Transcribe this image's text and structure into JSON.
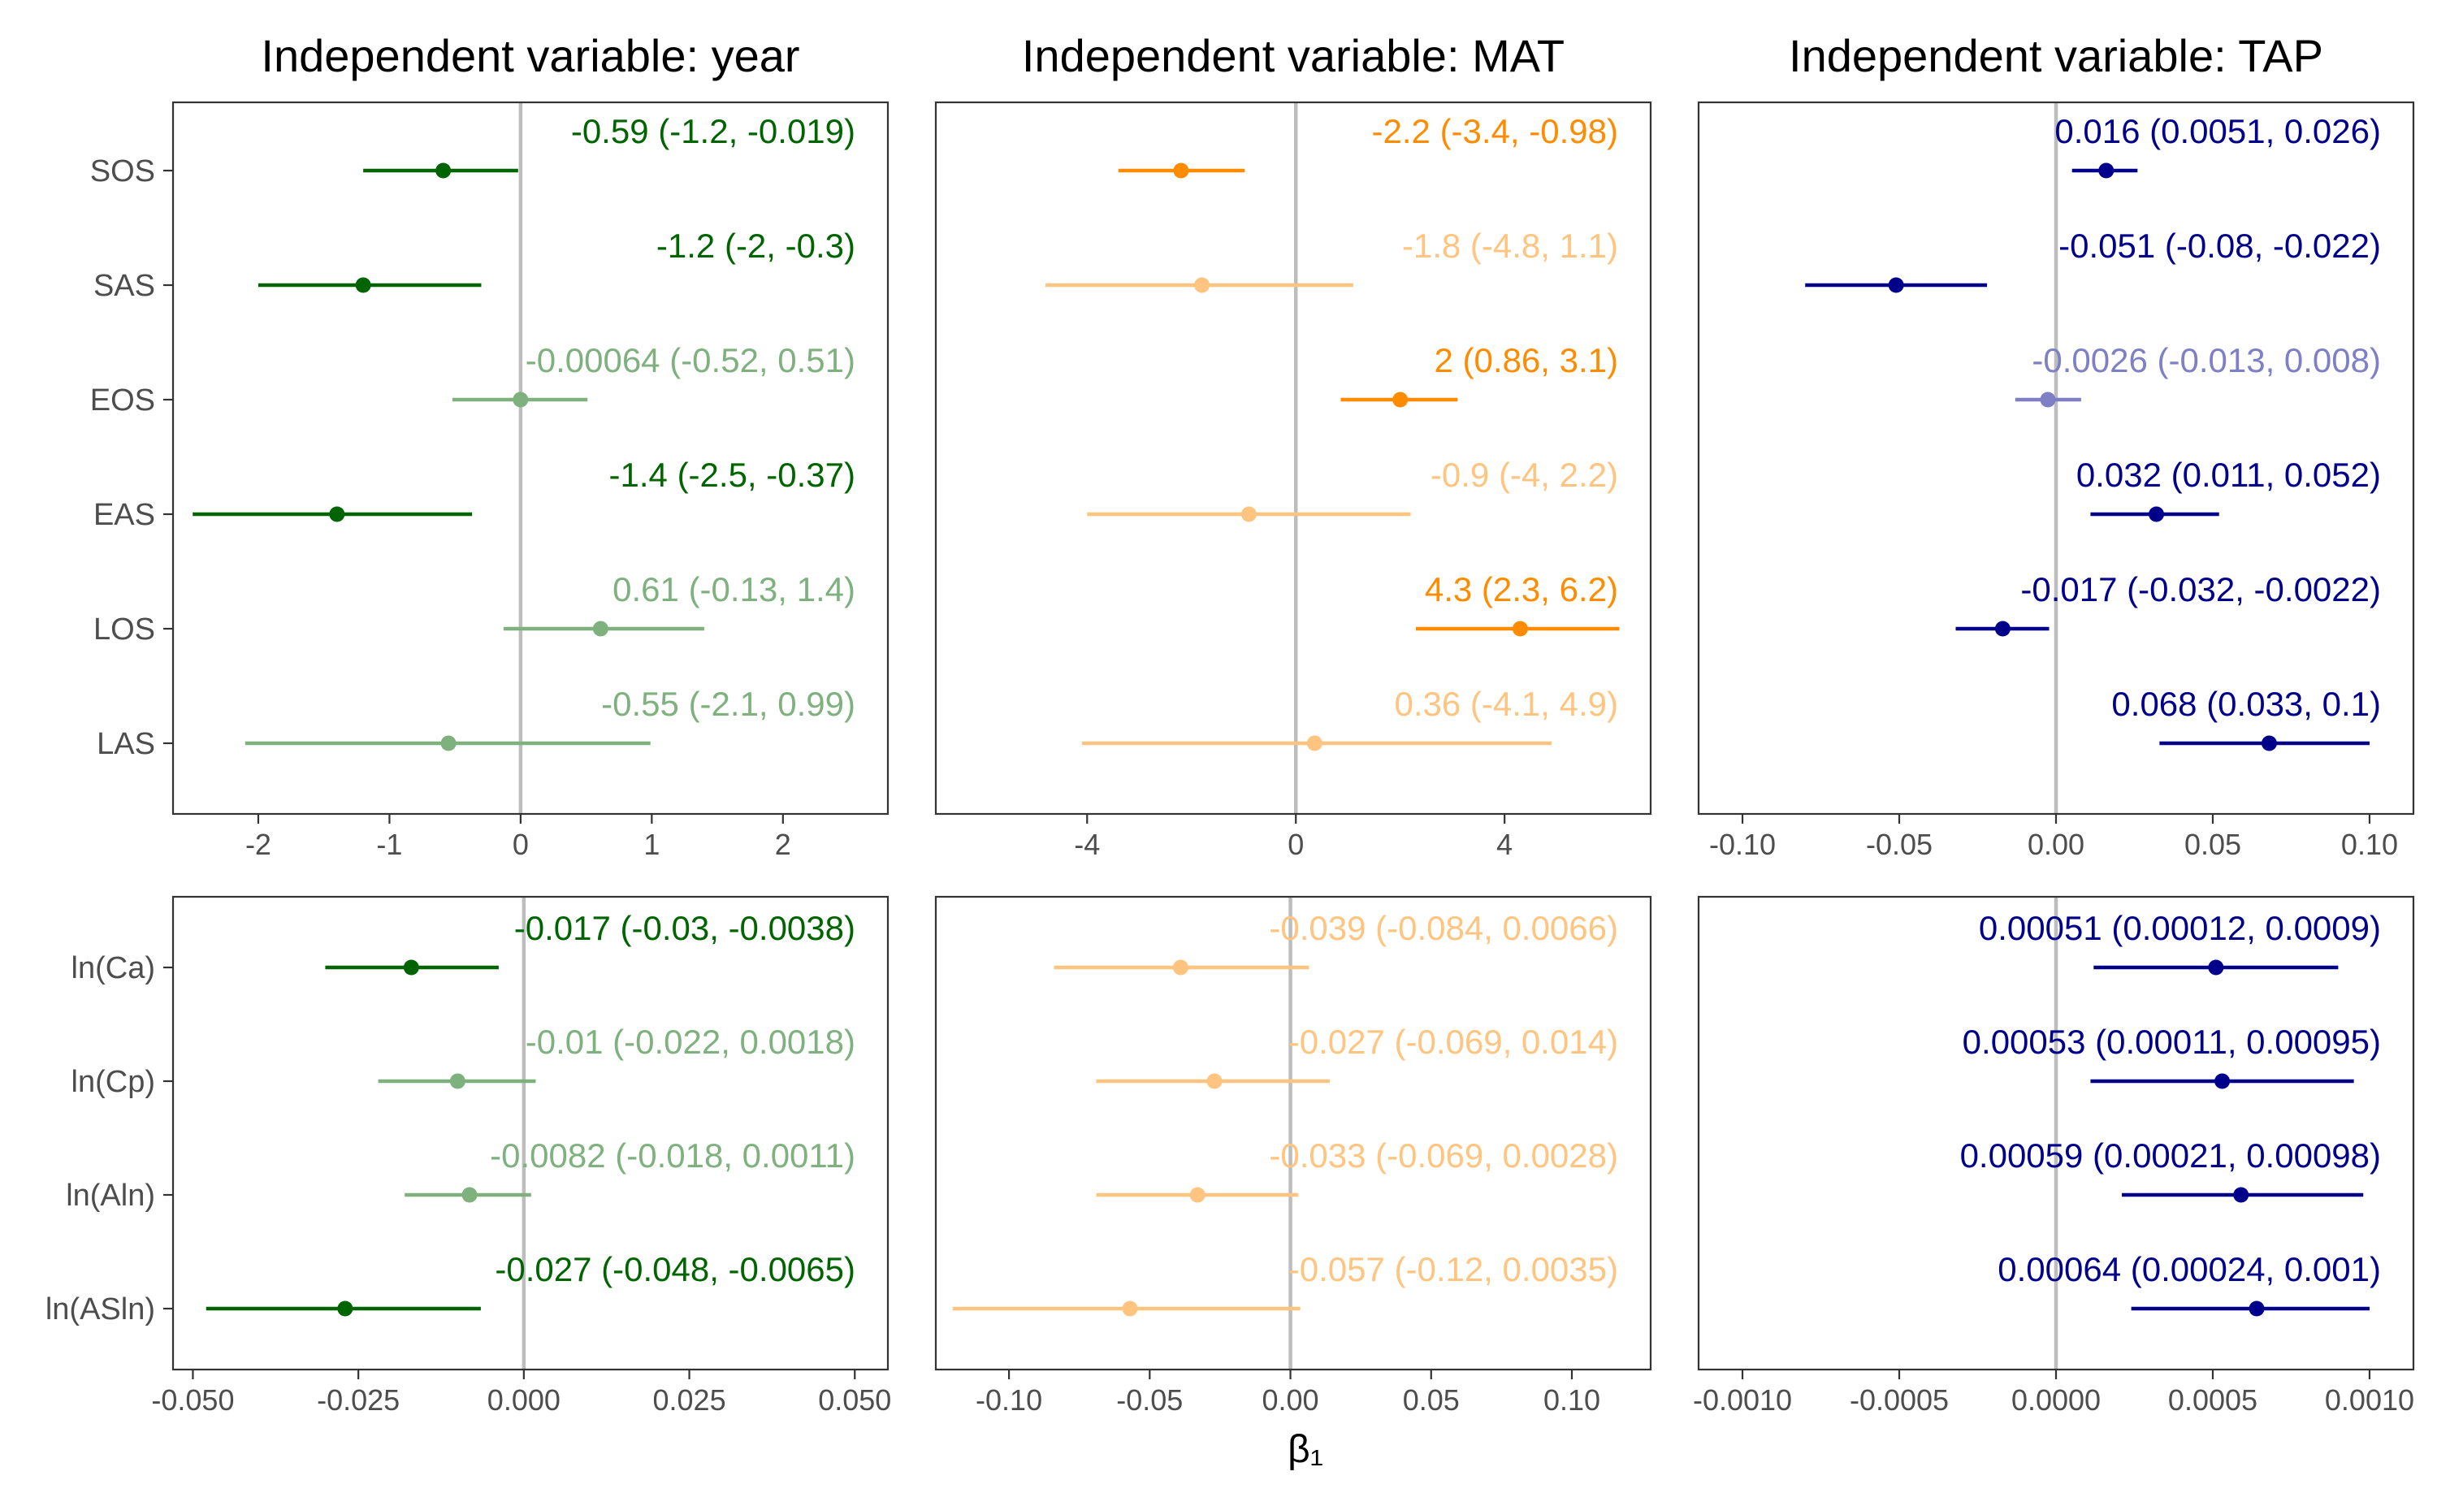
{
  "xlabel": "β₁",
  "colors": {
    "year": {
      "sig": "#006400",
      "nonsig": "#7fb17f"
    },
    "MAT": {
      "sig": "#ff8c00",
      "nonsig": "#ffc47f"
    },
    "TAP": {
      "sig": "#00008b",
      "nonsig": "#7f7fc5"
    }
  },
  "chart_data": {
    "type": "scatter",
    "subtype": "forest-plot with 95% confidence intervals",
    "columns": [
      {
        "key": "year",
        "title": "Independent variable: year"
      },
      {
        "key": "MAT",
        "title": "Independent variable: MAT"
      },
      {
        "key": "TAP",
        "title": "Independent variable: TAP"
      }
    ],
    "panels": [
      {
        "id": "top-year",
        "column": "year",
        "row": "top",
        "xlim": [
          -2.65,
          2.8
        ],
        "ticks": [
          -2,
          -1,
          0,
          1,
          2
        ],
        "tick_labels": [
          "-2",
          "-1",
          "0",
          "1",
          "2"
        ],
        "items": [
          {
            "label": "SOS",
            "est": -0.59,
            "lo": -1.2,
            "hi": -0.019,
            "sig": true,
            "text": "-0.59 (-1.2, -0.019)"
          },
          {
            "label": "SAS",
            "est": -1.2,
            "lo": -2,
            "hi": -0.3,
            "sig": true,
            "text": "-1.2 (-2, -0.3)"
          },
          {
            "label": "EOS",
            "est": -0.00064,
            "lo": -0.52,
            "hi": 0.51,
            "sig": false,
            "text": "-0.00064 (-0.52, 0.51)"
          },
          {
            "label": "EAS",
            "est": -1.4,
            "lo": -2.5,
            "hi": -0.37,
            "sig": true,
            "text": "-1.4 (-2.5, -0.37)"
          },
          {
            "label": "LOS",
            "est": 0.61,
            "lo": -0.13,
            "hi": 1.4,
            "sig": false,
            "text": "0.61 (-0.13, 1.4)"
          },
          {
            "label": "LAS",
            "est": -0.55,
            "lo": -2.1,
            "hi": 0.99,
            "sig": false,
            "text": "-0.55 (-2.1, 0.99)"
          }
        ]
      },
      {
        "id": "top-MAT",
        "column": "MAT",
        "row": "top",
        "xlim": [
          -6.9,
          6.8
        ],
        "ticks": [
          -4,
          0,
          4
        ],
        "tick_labels": [
          "-4",
          "0",
          "4"
        ],
        "items": [
          {
            "label": "SOS",
            "est": -2.2,
            "lo": -3.4,
            "hi": -0.98,
            "sig": true,
            "text": "-2.2 (-3.4, -0.98)"
          },
          {
            "label": "SAS",
            "est": -1.8,
            "lo": -4.8,
            "hi": 1.1,
            "sig": false,
            "text": "-1.8 (-4.8, 1.1)"
          },
          {
            "label": "EOS",
            "est": 2,
            "lo": 0.86,
            "hi": 3.1,
            "sig": true,
            "text": "2 (0.86, 3.1)"
          },
          {
            "label": "EAS",
            "est": -0.9,
            "lo": -4,
            "hi": 2.2,
            "sig": false,
            "text": "-0.9 (-4, 2.2)"
          },
          {
            "label": "LOS",
            "est": 4.3,
            "lo": 2.3,
            "hi": 6.2,
            "sig": true,
            "text": "4.3 (2.3, 6.2)"
          },
          {
            "label": "LAS",
            "est": 0.36,
            "lo": -4.1,
            "hi": 4.9,
            "sig": false,
            "text": "0.36 (-4.1, 4.9)"
          }
        ]
      },
      {
        "id": "top-TAP",
        "column": "TAP",
        "row": "top",
        "xlim": [
          -0.114,
          0.114
        ],
        "ticks": [
          -0.1,
          -0.05,
          0.0,
          0.05,
          0.1
        ],
        "tick_labels": [
          "-0.10",
          "-0.05",
          "0.00",
          "0.05",
          "0.10"
        ],
        "items": [
          {
            "label": "SOS",
            "est": 0.016,
            "lo": 0.0051,
            "hi": 0.026,
            "sig": true,
            "text": "0.016 (0.0051, 0.026)"
          },
          {
            "label": "SAS",
            "est": -0.051,
            "lo": -0.08,
            "hi": -0.022,
            "sig": true,
            "text": "-0.051 (-0.08, -0.022)"
          },
          {
            "label": "EOS",
            "est": -0.0026,
            "lo": -0.013,
            "hi": 0.008,
            "sig": false,
            "text": "-0.0026 (-0.013, 0.008)"
          },
          {
            "label": "EAS",
            "est": 0.032,
            "lo": 0.011,
            "hi": 0.052,
            "sig": true,
            "text": "0.032 (0.011, 0.052)"
          },
          {
            "label": "LOS",
            "est": -0.017,
            "lo": -0.032,
            "hi": -0.0022,
            "sig": true,
            "text": "-0.017 (-0.032, -0.0022)"
          },
          {
            "label": "LAS",
            "est": 0.068,
            "lo": 0.033,
            "hi": 0.1,
            "sig": true,
            "text": "0.068 (0.033, 0.1)"
          }
        ]
      },
      {
        "id": "bottom-year",
        "column": "year",
        "row": "bottom",
        "xlim": [
          -0.053,
          0.055
        ],
        "ticks": [
          -0.05,
          -0.025,
          0.0,
          0.025,
          0.05
        ],
        "tick_labels": [
          "-0.050",
          "-0.025",
          "0.000",
          "0.025",
          "0.050"
        ],
        "items": [
          {
            "label": "ln(Ca)",
            "est": -0.017,
            "lo": -0.03,
            "hi": -0.0038,
            "sig": true,
            "text": "-0.017 (-0.03, -0.0038)"
          },
          {
            "label": "ln(Cp)",
            "est": -0.01,
            "lo": -0.022,
            "hi": 0.0018,
            "sig": false,
            "text": "-0.01 (-0.022, 0.0018)"
          },
          {
            "label": "ln(Aln)",
            "est": -0.0082,
            "lo": -0.018,
            "hi": 0.0011,
            "sig": false,
            "text": "-0.0082 (-0.018, 0.0011)"
          },
          {
            "label": "ln(ASln)",
            "est": -0.027,
            "lo": -0.048,
            "hi": -0.0065,
            "sig": true,
            "text": "-0.027 (-0.048, -0.0065)"
          }
        ]
      },
      {
        "id": "bottom-MAT",
        "column": "MAT",
        "row": "bottom",
        "xlim": [
          -0.126,
          0.128
        ],
        "ticks": [
          -0.1,
          -0.05,
          0.0,
          0.05,
          0.1
        ],
        "tick_labels": [
          "-0.10",
          "-0.05",
          "0.00",
          "0.05",
          "0.10"
        ],
        "items": [
          {
            "label": "ln(Ca)",
            "est": -0.039,
            "lo": -0.084,
            "hi": 0.0066,
            "sig": false,
            "text": "-0.039 (-0.084, 0.0066)"
          },
          {
            "label": "ln(Cp)",
            "est": -0.027,
            "lo": -0.069,
            "hi": 0.014,
            "sig": false,
            "text": "-0.027 (-0.069, 0.014)"
          },
          {
            "label": "ln(Aln)",
            "est": -0.033,
            "lo": -0.069,
            "hi": 0.0028,
            "sig": false,
            "text": "-0.033 (-0.069, 0.0028)"
          },
          {
            "label": "ln(ASln)",
            "est": -0.057,
            "lo": -0.12,
            "hi": 0.0035,
            "sig": false,
            "text": "-0.057 (-0.12, 0.0035)"
          }
        ]
      },
      {
        "id": "bottom-TAP",
        "column": "TAP",
        "row": "bottom",
        "xlim": [
          -0.00114,
          0.00114
        ],
        "ticks": [
          -0.001,
          -0.0005,
          0.0,
          0.0005,
          0.001
        ],
        "tick_labels": [
          "-0.0010",
          "-0.0005",
          "0.0000",
          "0.0005",
          "0.0010"
        ],
        "items": [
          {
            "label": "ln(Ca)",
            "est": 0.00051,
            "lo": 0.00012,
            "hi": 0.0009,
            "sig": true,
            "text": "0.00051 (0.00012, 0.0009)"
          },
          {
            "label": "ln(Cp)",
            "est": 0.00053,
            "lo": 0.00011,
            "hi": 0.00095,
            "sig": true,
            "text": "0.00053 (0.00011, 0.00095)"
          },
          {
            "label": "ln(Aln)",
            "est": 0.00059,
            "lo": 0.00021,
            "hi": 0.00098,
            "sig": true,
            "text": "0.00059 (0.00021, 0.00098)"
          },
          {
            "label": "ln(ASln)",
            "est": 0.00064,
            "lo": 0.00024,
            "hi": 0.001,
            "sig": true,
            "text": "0.00064 (0.00024, 0.001)"
          }
        ]
      }
    ]
  }
}
